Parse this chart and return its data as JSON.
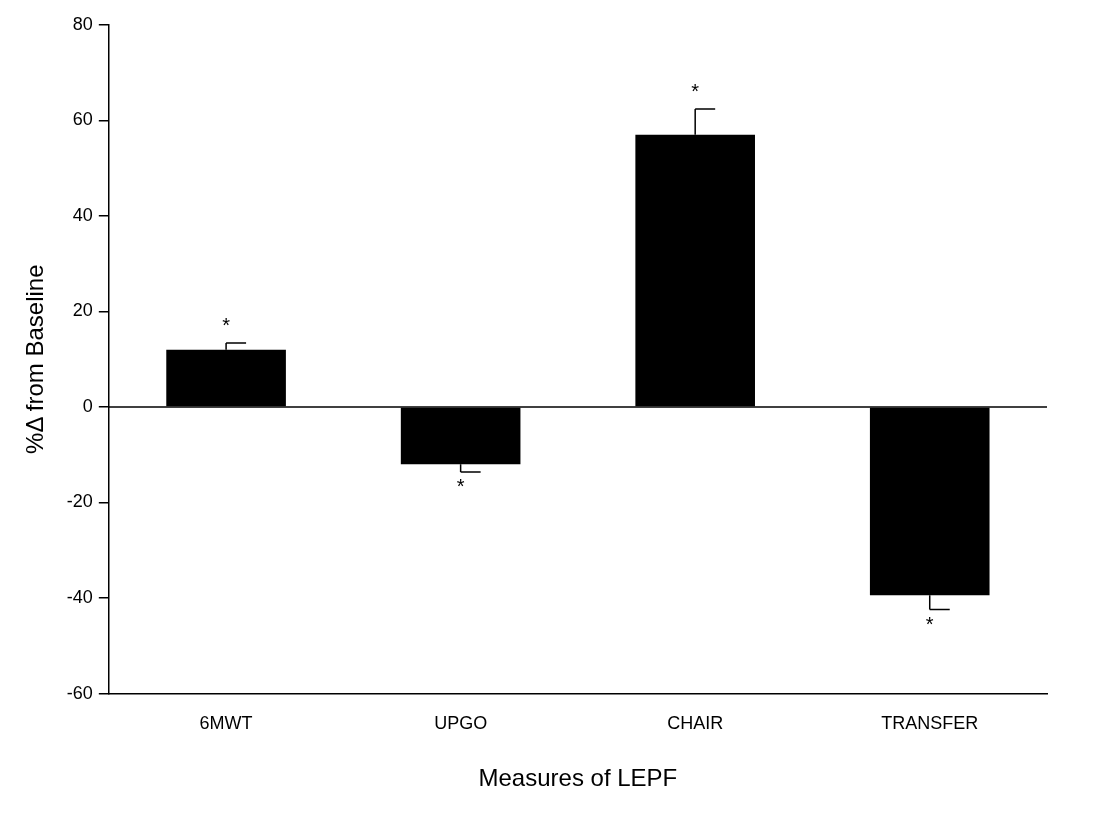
{
  "chart_data": {
    "type": "bar",
    "xlabel": "Measures of LEPF",
    "ylabel": "%Δ from Baseline",
    "categories": [
      "6MWT",
      "UPGO",
      "CHAIR",
      "TRANSFER"
    ],
    "values": [
      12,
      -12,
      57,
      -39.4
    ],
    "errors": [
      [
        12,
        13.4
      ],
      [
        -13.6,
        -12
      ],
      [
        57,
        62.4
      ],
      [
        -42.4,
        -39.4
      ]
    ],
    "color": "#000000",
    "ylim": [
      -60,
      80
    ],
    "yticks": [
      -60,
      -40,
      -20,
      0,
      20,
      40,
      60,
      80
    ],
    "grid": false,
    "legend": false,
    "ref_lines": [
      {
        "axis": "y",
        "value": 0,
        "color": "#000000"
      }
    ],
    "annotations": [
      {
        "text": "*",
        "x": "6MWT",
        "y": 12
      },
      {
        "text": "*",
        "x": "UPGO",
        "y": -12
      },
      {
        "text": "*",
        "x": "CHAIR",
        "y": 57
      },
      {
        "text": "*",
        "x": "TRANSFER",
        "y": -39.4
      }
    ]
  }
}
